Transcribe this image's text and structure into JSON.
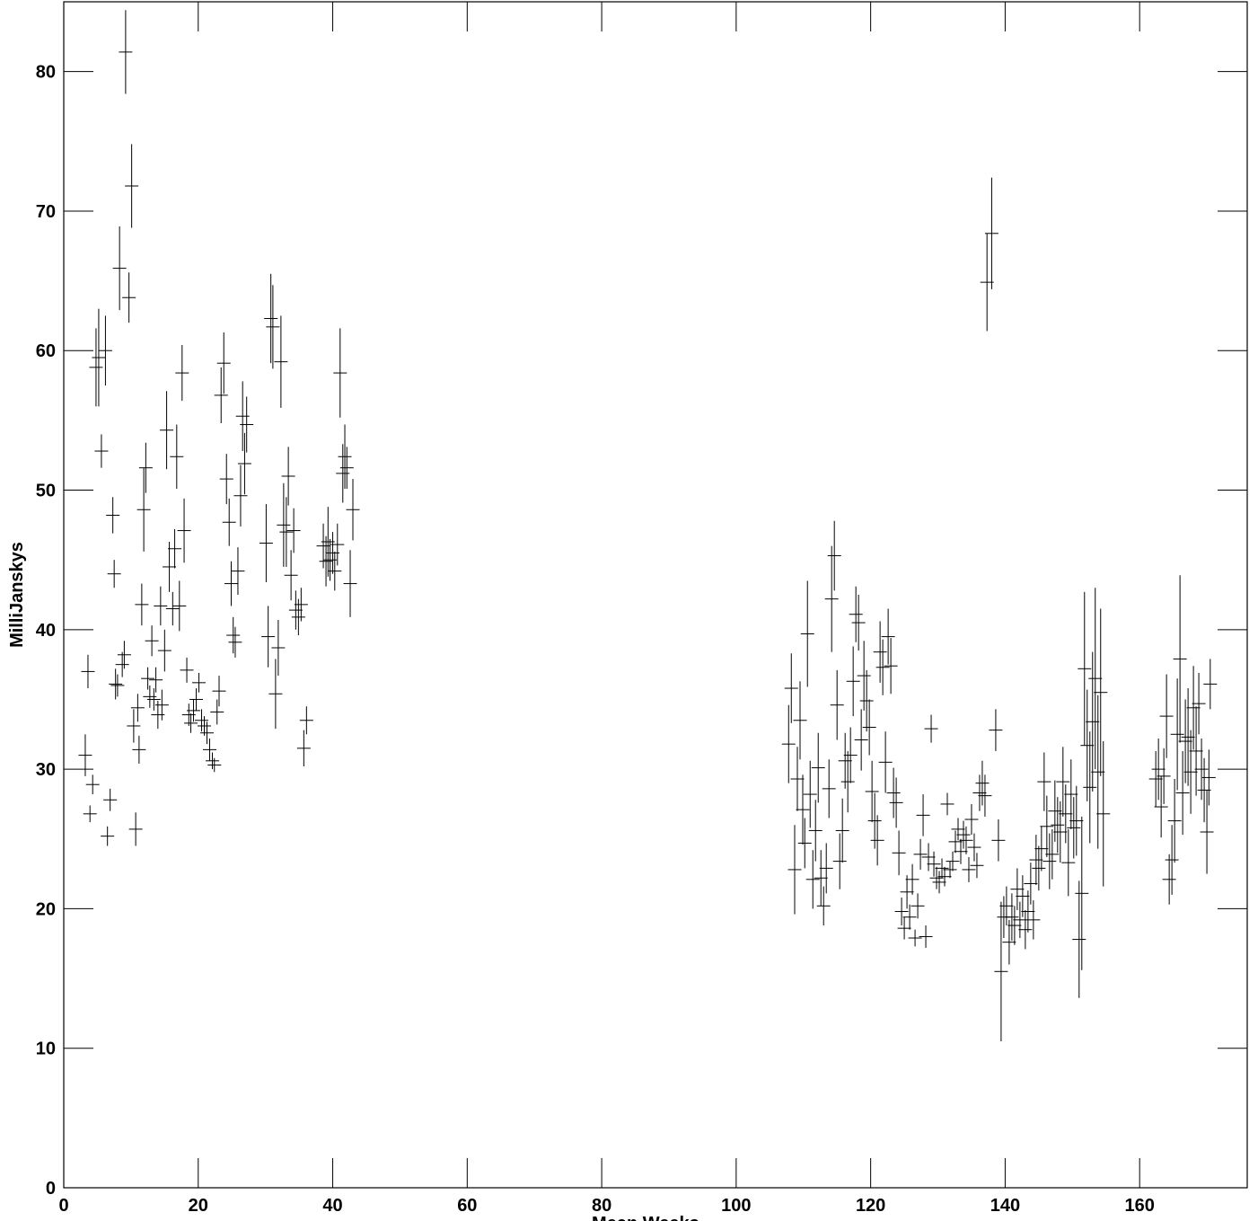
{
  "chart_data": {
    "type": "scatter",
    "xlabel": "Mean Weeks ...",
    "ylabel": "MilliJanskys",
    "xlim": [
      0,
      176
    ],
    "ylim": [
      0,
      85
    ],
    "x_ticks": [
      0,
      20,
      40,
      60,
      80,
      100,
      120,
      140,
      160
    ],
    "y_ticks": [
      0,
      10,
      20,
      30,
      40,
      50,
      60,
      70,
      80
    ],
    "grid": false,
    "marker": "crosshair with vertical error bars",
    "series": [
      {
        "points": [
          [
            3.2,
            31.0,
            1.5
          ],
          [
            3.6,
            37.0,
            1.2
          ],
          [
            3.9,
            26.8,
            0.6
          ],
          [
            4.3,
            28.9,
            0.7
          ],
          [
            4.8,
            58.8,
            2.8
          ],
          [
            5.2,
            59.5,
            3.5
          ],
          [
            5.6,
            52.8,
            1.2
          ],
          [
            6.2,
            60.0,
            2.5
          ],
          [
            6.5,
            25.2,
            0.7
          ],
          [
            6.9,
            27.8,
            0.8
          ],
          [
            7.3,
            48.2,
            1.3
          ],
          [
            7.5,
            44.0,
            1.0
          ],
          [
            7.7,
            36.1,
            1.1
          ],
          [
            8.0,
            36.0,
            0.8
          ],
          [
            8.3,
            65.9,
            3.0
          ],
          [
            8.7,
            37.5,
            0.9
          ],
          [
            9.0,
            38.2,
            1.0
          ],
          [
            9.2,
            81.4,
            3.0
          ],
          [
            9.7,
            63.8,
            1.8
          ],
          [
            10.1,
            71.8,
            3.0
          ],
          [
            10.4,
            33.1,
            1.2
          ],
          [
            10.7,
            25.7,
            1.2
          ],
          [
            11.0,
            34.4,
            1.0
          ],
          [
            11.2,
            31.4,
            1.0
          ],
          [
            11.6,
            41.8,
            1.5
          ],
          [
            11.9,
            48.6,
            3.0
          ],
          [
            12.2,
            51.6,
            1.8
          ],
          [
            12.5,
            36.5,
            0.8
          ],
          [
            12.8,
            35.2,
            0.8
          ],
          [
            13.1,
            39.2,
            1.1
          ],
          [
            13.4,
            35.0,
            0.8
          ],
          [
            13.7,
            36.4,
            0.9
          ],
          [
            14.0,
            33.9,
            1.0
          ],
          [
            14.4,
            41.7,
            1.4
          ],
          [
            14.6,
            34.6,
            1.1
          ],
          [
            15.0,
            38.5,
            1.5
          ],
          [
            15.3,
            54.3,
            2.8
          ],
          [
            15.7,
            44.5,
            1.8
          ],
          [
            16.2,
            41.5,
            1.2
          ],
          [
            16.5,
            45.8,
            1.4
          ],
          [
            16.8,
            52.4,
            2.3
          ],
          [
            17.2,
            41.7,
            1.8
          ],
          [
            17.6,
            58.4,
            2.0
          ],
          [
            17.9,
            47.1,
            2.3
          ],
          [
            18.3,
            37.1,
            0.9
          ],
          [
            18.6,
            33.9,
            0.8
          ],
          [
            18.9,
            33.3,
            0.7
          ],
          [
            19.3,
            34.2,
            0.8
          ],
          [
            19.7,
            35.0,
            0.8
          ],
          [
            20.1,
            36.2,
            0.7
          ],
          [
            20.5,
            33.5,
            0.8
          ],
          [
            20.9,
            33.1,
            0.7
          ],
          [
            21.3,
            32.6,
            0.8
          ],
          [
            21.7,
            31.4,
            0.8
          ],
          [
            22.1,
            30.6,
            0.6
          ],
          [
            22.4,
            30.3,
            0.5
          ],
          [
            22.8,
            34.1,
            0.9
          ],
          [
            23.1,
            35.6,
            1.1
          ],
          [
            23.4,
            56.8,
            2.0
          ],
          [
            23.8,
            59.1,
            2.2
          ],
          [
            24.2,
            50.8,
            1.8
          ],
          [
            24.6,
            47.7,
            1.7
          ],
          [
            24.9,
            43.3,
            1.6
          ],
          [
            25.2,
            39.6,
            1.3
          ],
          [
            25.5,
            39.1,
            1.1
          ],
          [
            25.9,
            44.2,
            1.7
          ],
          [
            26.3,
            49.6,
            2.2
          ],
          [
            26.6,
            55.3,
            2.5
          ],
          [
            26.9,
            51.9,
            2.2
          ],
          [
            27.2,
            54.7,
            2.0
          ],
          [
            30.1,
            46.2,
            2.8
          ],
          [
            30.4,
            39.5,
            2.2
          ],
          [
            30.8,
            62.3,
            3.2
          ],
          [
            31.1,
            61.7,
            3.0
          ],
          [
            31.5,
            35.4,
            2.5
          ],
          [
            31.9,
            38.7,
            2.0
          ],
          [
            32.3,
            59.2,
            3.3
          ],
          [
            32.7,
            47.5,
            3.0
          ],
          [
            33.1,
            47.0,
            2.5
          ],
          [
            33.4,
            51.0,
            2.1
          ],
          [
            33.8,
            43.9,
            1.8
          ],
          [
            34.2,
            47.1,
            1.6
          ],
          [
            34.5,
            41.4,
            1.4
          ],
          [
            34.9,
            40.9,
            1.3
          ],
          [
            35.3,
            41.8,
            1.2
          ],
          [
            35.7,
            31.5,
            1.3
          ],
          [
            36.1,
            33.5,
            1.0
          ],
          [
            38.6,
            46.0,
            1.6
          ],
          [
            39.0,
            44.9,
            1.8
          ],
          [
            39.3,
            46.3,
            2.5
          ],
          [
            39.6,
            45.0,
            1.5
          ],
          [
            40.0,
            45.5,
            1.5
          ],
          [
            40.3,
            44.2,
            1.4
          ],
          [
            40.7,
            46.1,
            1.5
          ],
          [
            41.1,
            58.4,
            3.2
          ],
          [
            41.5,
            51.2,
            2.1
          ],
          [
            41.8,
            52.4,
            2.3
          ],
          [
            42.1,
            51.6,
            1.5
          ],
          [
            42.6,
            43.3,
            2.4
          ],
          [
            43.0,
            48.6,
            2.2
          ],
          [
            107.8,
            31.8,
            2.8
          ],
          [
            108.2,
            35.8,
            2.5
          ],
          [
            108.7,
            22.8,
            3.2
          ],
          [
            109.1,
            29.3,
            2.3
          ],
          [
            109.5,
            33.5,
            2.8
          ],
          [
            109.9,
            27.1,
            2.5
          ],
          [
            110.2,
            24.7,
            1.8
          ],
          [
            110.6,
            39.7,
            3.8
          ],
          [
            111.0,
            28.2,
            2.4
          ],
          [
            111.4,
            22.1,
            2.1
          ],
          [
            111.8,
            25.6,
            2.2
          ],
          [
            112.2,
            30.1,
            2.5
          ],
          [
            112.6,
            22.2,
            2.0
          ],
          [
            113.0,
            20.2,
            1.4
          ],
          [
            113.4,
            22.9,
            1.8
          ],
          [
            113.8,
            28.6,
            2.1
          ],
          [
            114.2,
            42.2,
            3.8
          ],
          [
            114.6,
            45.3,
            2.5
          ],
          [
            115.0,
            34.6,
            2.5
          ],
          [
            115.4,
            23.4,
            2.0
          ],
          [
            115.8,
            25.6,
            2.3
          ],
          [
            116.2,
            30.6,
            2.0
          ],
          [
            116.6,
            29.1,
            2.2
          ],
          [
            117.0,
            31.0,
            2.0
          ],
          [
            117.4,
            36.3,
            2.5
          ],
          [
            117.8,
            41.1,
            2.0
          ],
          [
            118.2,
            40.5,
            2.0
          ],
          [
            118.6,
            32.1,
            2.2
          ],
          [
            119.0,
            36.7,
            2.5
          ],
          [
            119.4,
            34.9,
            2.2
          ],
          [
            119.8,
            33.0,
            2.0
          ],
          [
            120.2,
            28.4,
            2.2
          ],
          [
            120.6,
            26.3,
            2.0
          ],
          [
            121.0,
            24.9,
            1.8
          ],
          [
            121.4,
            38.4,
            2.2
          ],
          [
            121.8,
            37.3,
            2.0
          ],
          [
            122.2,
            30.5,
            2.2
          ],
          [
            122.6,
            39.5,
            2.0
          ],
          [
            123.0,
            37.4,
            2.0
          ],
          [
            123.4,
            28.3,
            1.8
          ],
          [
            123.8,
            27.6,
            1.8
          ],
          [
            124.2,
            24.0,
            1.6
          ],
          [
            124.6,
            19.8,
            1.0
          ],
          [
            125.0,
            18.6,
            0.8
          ],
          [
            125.4,
            21.2,
            1.2
          ],
          [
            125.8,
            19.4,
            0.9
          ],
          [
            126.2,
            22.1,
            1.1
          ],
          [
            126.6,
            17.9,
            0.6
          ],
          [
            127.0,
            20.2,
            0.9
          ],
          [
            127.4,
            23.9,
            1.1
          ],
          [
            127.8,
            26.7,
            1.5
          ],
          [
            128.2,
            18.0,
            0.8
          ],
          [
            128.6,
            23.7,
            1.0
          ],
          [
            129.0,
            32.9,
            1.0
          ],
          [
            129.4,
            23.2,
            0.9
          ],
          [
            129.8,
            22.2,
            0.8
          ],
          [
            130.2,
            21.9,
            0.8
          ],
          [
            130.6,
            22.9,
            0.7
          ],
          [
            131.0,
            22.3,
            0.7
          ],
          [
            131.4,
            27.5,
            0.8
          ],
          [
            131.8,
            22.8,
            0.6
          ],
          [
            132.2,
            23.4,
            0.7
          ],
          [
            132.6,
            24.8,
            0.8
          ],
          [
            133.0,
            25.7,
            0.8
          ],
          [
            133.4,
            24.1,
            0.9
          ],
          [
            133.8,
            25.3,
            1.0
          ],
          [
            134.2,
            24.9,
            1.0
          ],
          [
            134.6,
            22.8,
            0.9
          ],
          [
            135.0,
            26.4,
            1.1
          ],
          [
            135.4,
            24.4,
            1.0
          ],
          [
            135.8,
            23.1,
            0.9
          ],
          [
            136.2,
            28.3,
            1.3
          ],
          [
            136.6,
            29.0,
            1.6
          ],
          [
            137.0,
            28.1,
            1.5
          ],
          [
            137.3,
            64.9,
            3.5
          ],
          [
            138.0,
            68.4,
            4.0
          ],
          [
            138.6,
            32.8,
            1.5
          ],
          [
            139.0,
            24.9,
            1.5
          ],
          [
            139.4,
            15.5,
            5.0
          ],
          [
            139.8,
            19.4,
            1.5
          ],
          [
            140.2,
            20.2,
            1.4
          ],
          [
            140.6,
            17.6,
            1.6
          ],
          [
            141.0,
            19.4,
            1.7
          ],
          [
            141.4,
            18.8,
            1.4
          ],
          [
            141.8,
            21.4,
            1.5
          ],
          [
            142.2,
            19.2,
            1.3
          ],
          [
            142.6,
            20.9,
            1.5
          ],
          [
            143.0,
            18.5,
            1.4
          ],
          [
            143.4,
            19.8,
            1.5
          ],
          [
            143.8,
            21.8,
            1.5
          ],
          [
            144.2,
            19.2,
            1.4
          ],
          [
            144.6,
            23.5,
            1.8
          ],
          [
            145.0,
            22.9,
            1.6
          ],
          [
            145.4,
            24.3,
            1.6
          ],
          [
            145.8,
            29.1,
            2.1
          ],
          [
            146.2,
            25.9,
            2.2
          ],
          [
            146.6,
            23.4,
            2.0
          ],
          [
            147.0,
            23.9,
            1.8
          ],
          [
            147.4,
            27.0,
            2.2
          ],
          [
            147.8,
            26.0,
            2.0
          ],
          [
            148.2,
            25.5,
            2.2
          ],
          [
            148.6,
            29.1,
            2.5
          ],
          [
            149.0,
            26.8,
            2.1
          ],
          [
            149.4,
            23.3,
            2.4
          ],
          [
            149.8,
            28.2,
            2.5
          ],
          [
            150.2,
            25.8,
            2.2
          ],
          [
            150.6,
            26.3,
            2.5
          ],
          [
            151.0,
            17.8,
            4.2
          ],
          [
            151.4,
            21.1,
            5.5
          ],
          [
            151.8,
            37.2,
            5.5
          ],
          [
            152.2,
            31.7,
            4.0
          ],
          [
            152.6,
            28.7,
            4.0
          ],
          [
            153.0,
            33.4,
            5.0
          ],
          [
            153.4,
            36.5,
            6.5
          ],
          [
            153.8,
            29.8,
            5.5
          ],
          [
            154.2,
            35.5,
            6.0
          ],
          [
            154.6,
            26.8,
            5.2
          ],
          [
            162.4,
            29.3,
            2.0
          ],
          [
            162.8,
            30.0,
            2.2
          ],
          [
            163.2,
            27.3,
            2.2
          ],
          [
            163.6,
            29.5,
            2.0
          ],
          [
            164.0,
            33.8,
            3.0
          ],
          [
            164.4,
            22.1,
            1.8
          ],
          [
            164.8,
            23.5,
            2.5
          ],
          [
            165.2,
            26.3,
            3.0
          ],
          [
            165.6,
            32.5,
            4.0
          ],
          [
            166.0,
            37.9,
            6.0
          ],
          [
            166.4,
            28.3,
            3.0
          ],
          [
            166.8,
            32.0,
            3.0
          ],
          [
            167.2,
            32.3,
            3.5
          ],
          [
            167.6,
            29.8,
            3.0
          ],
          [
            168.0,
            34.4,
            3.0
          ],
          [
            168.4,
            31.3,
            3.2
          ],
          [
            168.8,
            34.7,
            2.2
          ],
          [
            169.2,
            30.0,
            2.2
          ],
          [
            169.6,
            28.5,
            2.3
          ],
          [
            170.0,
            25.5,
            3.0
          ],
          [
            170.3,
            29.4,
            2.0
          ],
          [
            170.5,
            36.1,
            1.8
          ]
        ]
      }
    ]
  }
}
